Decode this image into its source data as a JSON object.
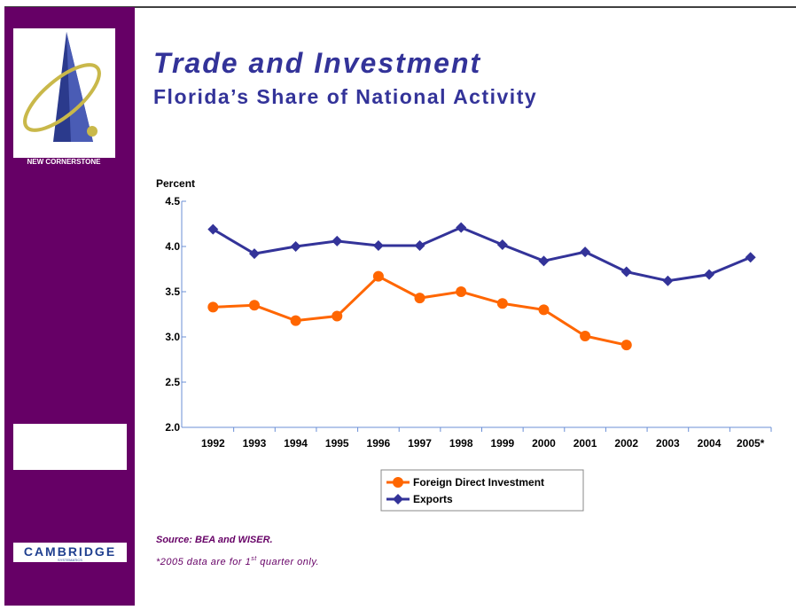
{
  "logos": {
    "top": "NEW CORNERSTONE",
    "bottom": "CAMBRIDGE",
    "bottom_sub": "SYSTEMATICS"
  },
  "chart_data": {
    "type": "line",
    "title": "Trade and Investment",
    "subtitle": "Florida’s Share of National Activity",
    "y_label": "Percent",
    "categories": [
      "1992",
      "1993",
      "1994",
      "1995",
      "1996",
      "1997",
      "1998",
      "1999",
      "2000",
      "2001",
      "2002",
      "2003",
      "2004",
      "2005*"
    ],
    "series": [
      {
        "name": "Foreign Direct Investment",
        "color": "#ff6600",
        "marker": "circle",
        "values": [
          3.33,
          3.35,
          3.18,
          3.23,
          3.67,
          3.43,
          3.5,
          3.37,
          3.3,
          3.01,
          2.91,
          null,
          null,
          null
        ]
      },
      {
        "name": "Exports",
        "color": "#333399",
        "marker": "diamond",
        "values": [
          4.19,
          3.92,
          4.0,
          4.06,
          4.01,
          4.01,
          4.21,
          4.02,
          3.84,
          3.94,
          3.72,
          3.62,
          3.69,
          3.88
        ]
      }
    ],
    "ylim": [
      2,
      4.5
    ],
    "yticks": [
      {
        "value": 2,
        "label": "2.0"
      },
      2.5,
      {
        "value": 3,
        "label": "3.0"
      },
      3.5,
      {
        "value": 4,
        "label": "4.0"
      },
      4.5
    ],
    "source": "Source:  BEA and WISER.",
    "note": [
      "*2005 data are for 1",
      "st",
      " quarter only."
    ]
  }
}
